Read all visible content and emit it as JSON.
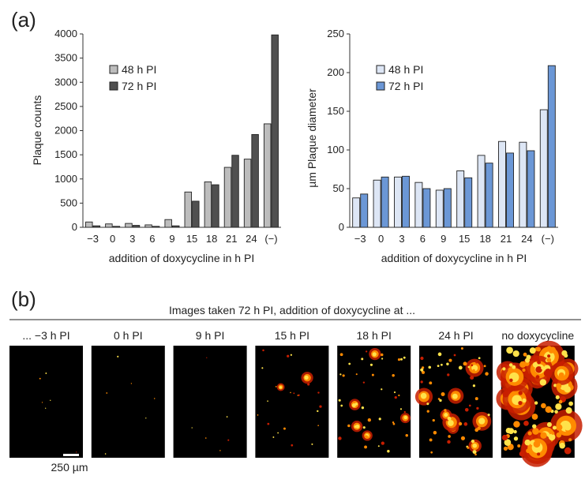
{
  "panel_labels": {
    "a": "(a)",
    "b": "(b)"
  },
  "chart_data": [
    {
      "type": "bar",
      "title": "",
      "xlabel": "addition of doxycycline in h PI",
      "ylabel": "Plaque counts",
      "categories": [
        "−3",
        "0",
        "3",
        "6",
        "9",
        "15",
        "18",
        "21",
        "24",
        "(−)"
      ],
      "ylim": [
        0,
        4000
      ],
      "yticks": [
        0,
        500,
        1000,
        1500,
        2000,
        2500,
        3000,
        3500,
        4000
      ],
      "legend_position": "top-left",
      "series": [
        {
          "name": "48 h PI",
          "color": "#bdbdbd",
          "values": [
            110,
            70,
            80,
            50,
            160,
            730,
            940,
            1240,
            1410,
            2140
          ]
        },
        {
          "name": "72 h PI",
          "color": "#505050",
          "values": [
            30,
            20,
            40,
            20,
            30,
            540,
            880,
            1490,
            1920,
            3980
          ]
        }
      ]
    },
    {
      "type": "bar",
      "title": "",
      "xlabel": "addition of doxycycline in h PI",
      "ylabel": "µm Plaque diameter",
      "categories": [
        "−3",
        "0",
        "3",
        "6",
        "9",
        "15",
        "18",
        "21",
        "24",
        "(−)"
      ],
      "ylim": [
        0,
        250
      ],
      "yticks": [
        0,
        50,
        100,
        150,
        200,
        250
      ],
      "legend_position": "top-left",
      "series": [
        {
          "name": "48 h PI",
          "color": "#dde6f5",
          "values": [
            38,
            61,
            65,
            58,
            48,
            73,
            93,
            111,
            110,
            152
          ]
        },
        {
          "name": "72 h PI",
          "color": "#6b97d6",
          "values": [
            43,
            65,
            66,
            50,
            50,
            64,
            83,
            96,
            99,
            209
          ]
        }
      ]
    }
  ],
  "images_panel": {
    "heading": "Images taken 72 h PI, addition of doxycycline at ...",
    "columns": [
      {
        "label": "... −3 h PI",
        "plaque_density": "very-low"
      },
      {
        "label": "0 h PI",
        "plaque_density": "very-low"
      },
      {
        "label": "9 h PI",
        "plaque_density": "very-low"
      },
      {
        "label": "15 h PI",
        "plaque_density": "low"
      },
      {
        "label": "18 h PI",
        "plaque_density": "medium"
      },
      {
        "label": "24 h PI",
        "plaque_density": "medium-high"
      },
      {
        "label": "no doxycycline",
        "plaque_density": "high"
      }
    ],
    "scale_bar_label": "250 µm",
    "colors": {
      "background": "#000000",
      "plaque_hot": "#ffe24a",
      "plaque_mid": "#ff8a00",
      "plaque_dim": "#c81e00"
    }
  }
}
